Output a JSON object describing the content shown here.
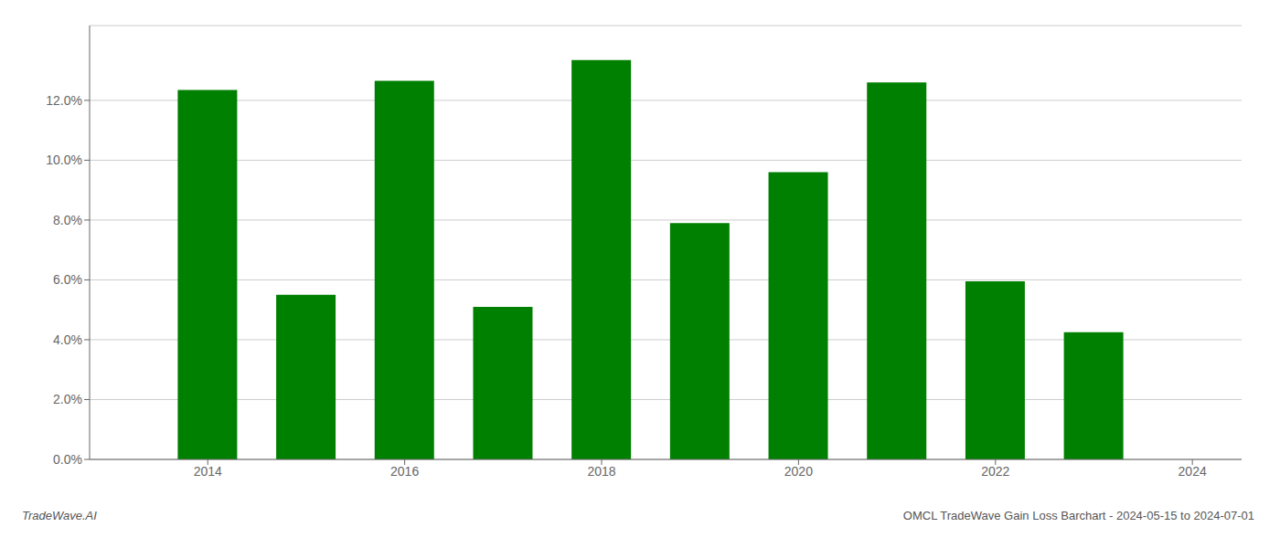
{
  "chart_data": {
    "type": "bar",
    "x": [
      2014,
      2015,
      2016,
      2017,
      2018,
      2019,
      2020,
      2021,
      2022,
      2023
    ],
    "values": [
      0.1235,
      0.055,
      0.1265,
      0.051,
      0.1335,
      0.079,
      0.096,
      0.126,
      0.0595,
      0.0425
    ],
    "color": "#008000",
    "xlim": [
      2012.8,
      2024.5
    ],
    "xticks": [
      2014,
      2016,
      2018,
      2020,
      2022,
      2024
    ],
    "ylim": [
      0,
      0.145
    ],
    "yticks": [
      {
        "value": 0,
        "label": "0.0%"
      },
      {
        "value": 0.02,
        "label": "2.0%"
      },
      {
        "value": 0.04,
        "label": "4.0%"
      },
      {
        "value": 0.06,
        "label": "6.0%"
      },
      {
        "value": 0.08,
        "label": "8.0%"
      },
      {
        "value": 0.1,
        "label": "10.0%"
      },
      {
        "value": 0.12,
        "label": "12.0%"
      }
    ],
    "grid": true,
    "annotations": [
      "TradeWave.AI",
      "OMCL TradeWave Gain Loss Barchart - 2024-05-15 to 2024-07-01"
    ]
  }
}
